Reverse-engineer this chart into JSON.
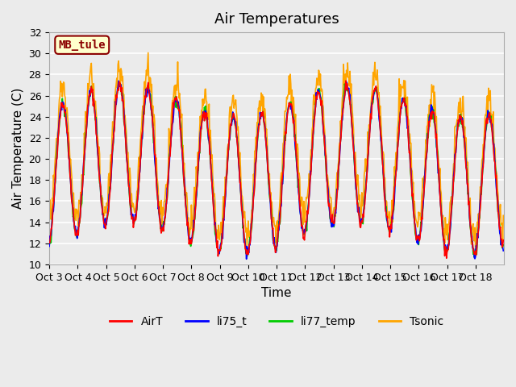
{
  "title": "Air Temperatures",
  "xlabel": "Time",
  "ylabel": "Air Temperature (C)",
  "ylim": [
    10,
    32
  ],
  "yticks": [
    10,
    12,
    14,
    16,
    18,
    20,
    22,
    24,
    26,
    28,
    30,
    32
  ],
  "x_tick_labels": [
    "Oct 3",
    "Oct 4",
    "Oct 5",
    "Oct 6",
    "Oct 7",
    "Oct 8",
    "Oct 9",
    "Oct 10",
    "Oct 11",
    "Oct 12",
    "Oct 13",
    "Oct 14",
    "Oct 15",
    "Oct 16",
    "Oct 17",
    "Oct 18"
  ],
  "annotation_text": "MB_tule",
  "annotation_facecolor": "#ffffcc",
  "annotation_edgecolor": "#8b0000",
  "annotation_textcolor": "#8b0000",
  "line_colors": {
    "AirT": "#ff0000",
    "li75_t": "#0000ff",
    "li77_temp": "#00cc00",
    "Tsonic": "#ffa500"
  },
  "plot_bg_color": "#ebebeb",
  "grid_color": "#ffffff",
  "title_fontsize": 13,
  "label_fontsize": 11,
  "tick_fontsize": 9,
  "legend_fontsize": 10,
  "n_days": 16,
  "points_per_day": 48
}
